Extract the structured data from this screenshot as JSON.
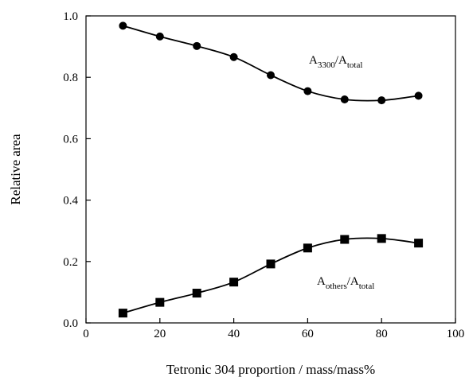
{
  "chart_data": {
    "type": "line",
    "title": "",
    "xlabel": "Tetronic 304 proportion / mass/mass%",
    "ylabel": "Relative area",
    "xlim": [
      0,
      100
    ],
    "ylim": [
      0,
      1.0
    ],
    "xticks": [
      "0",
      "20",
      "40",
      "60",
      "80",
      "100"
    ],
    "yticks": [
      "0.0",
      "0.2",
      "0.4",
      "0.6",
      "0.8",
      "1.0"
    ],
    "grid": false,
    "series": [
      {
        "name_main": "A",
        "name_sub": "3300",
        "name_sep": "/A",
        "name_sub2": "total",
        "marker": "circle",
        "x": [
          10,
          20,
          30,
          40,
          50,
          60,
          70,
          80,
          90
        ],
        "values": [
          0.968,
          0.933,
          0.902,
          0.866,
          0.807,
          0.755,
          0.728,
          0.725,
          0.74
        ]
      },
      {
        "name_main": "A",
        "name_sub": "others",
        "name_sep": "/A",
        "name_sub2": "total",
        "marker": "square",
        "x": [
          10,
          20,
          30,
          40,
          50,
          60,
          70,
          80,
          90
        ],
        "values": [
          0.032,
          0.067,
          0.097,
          0.133,
          0.192,
          0.244,
          0.272,
          0.275,
          0.26
        ]
      }
    ]
  }
}
